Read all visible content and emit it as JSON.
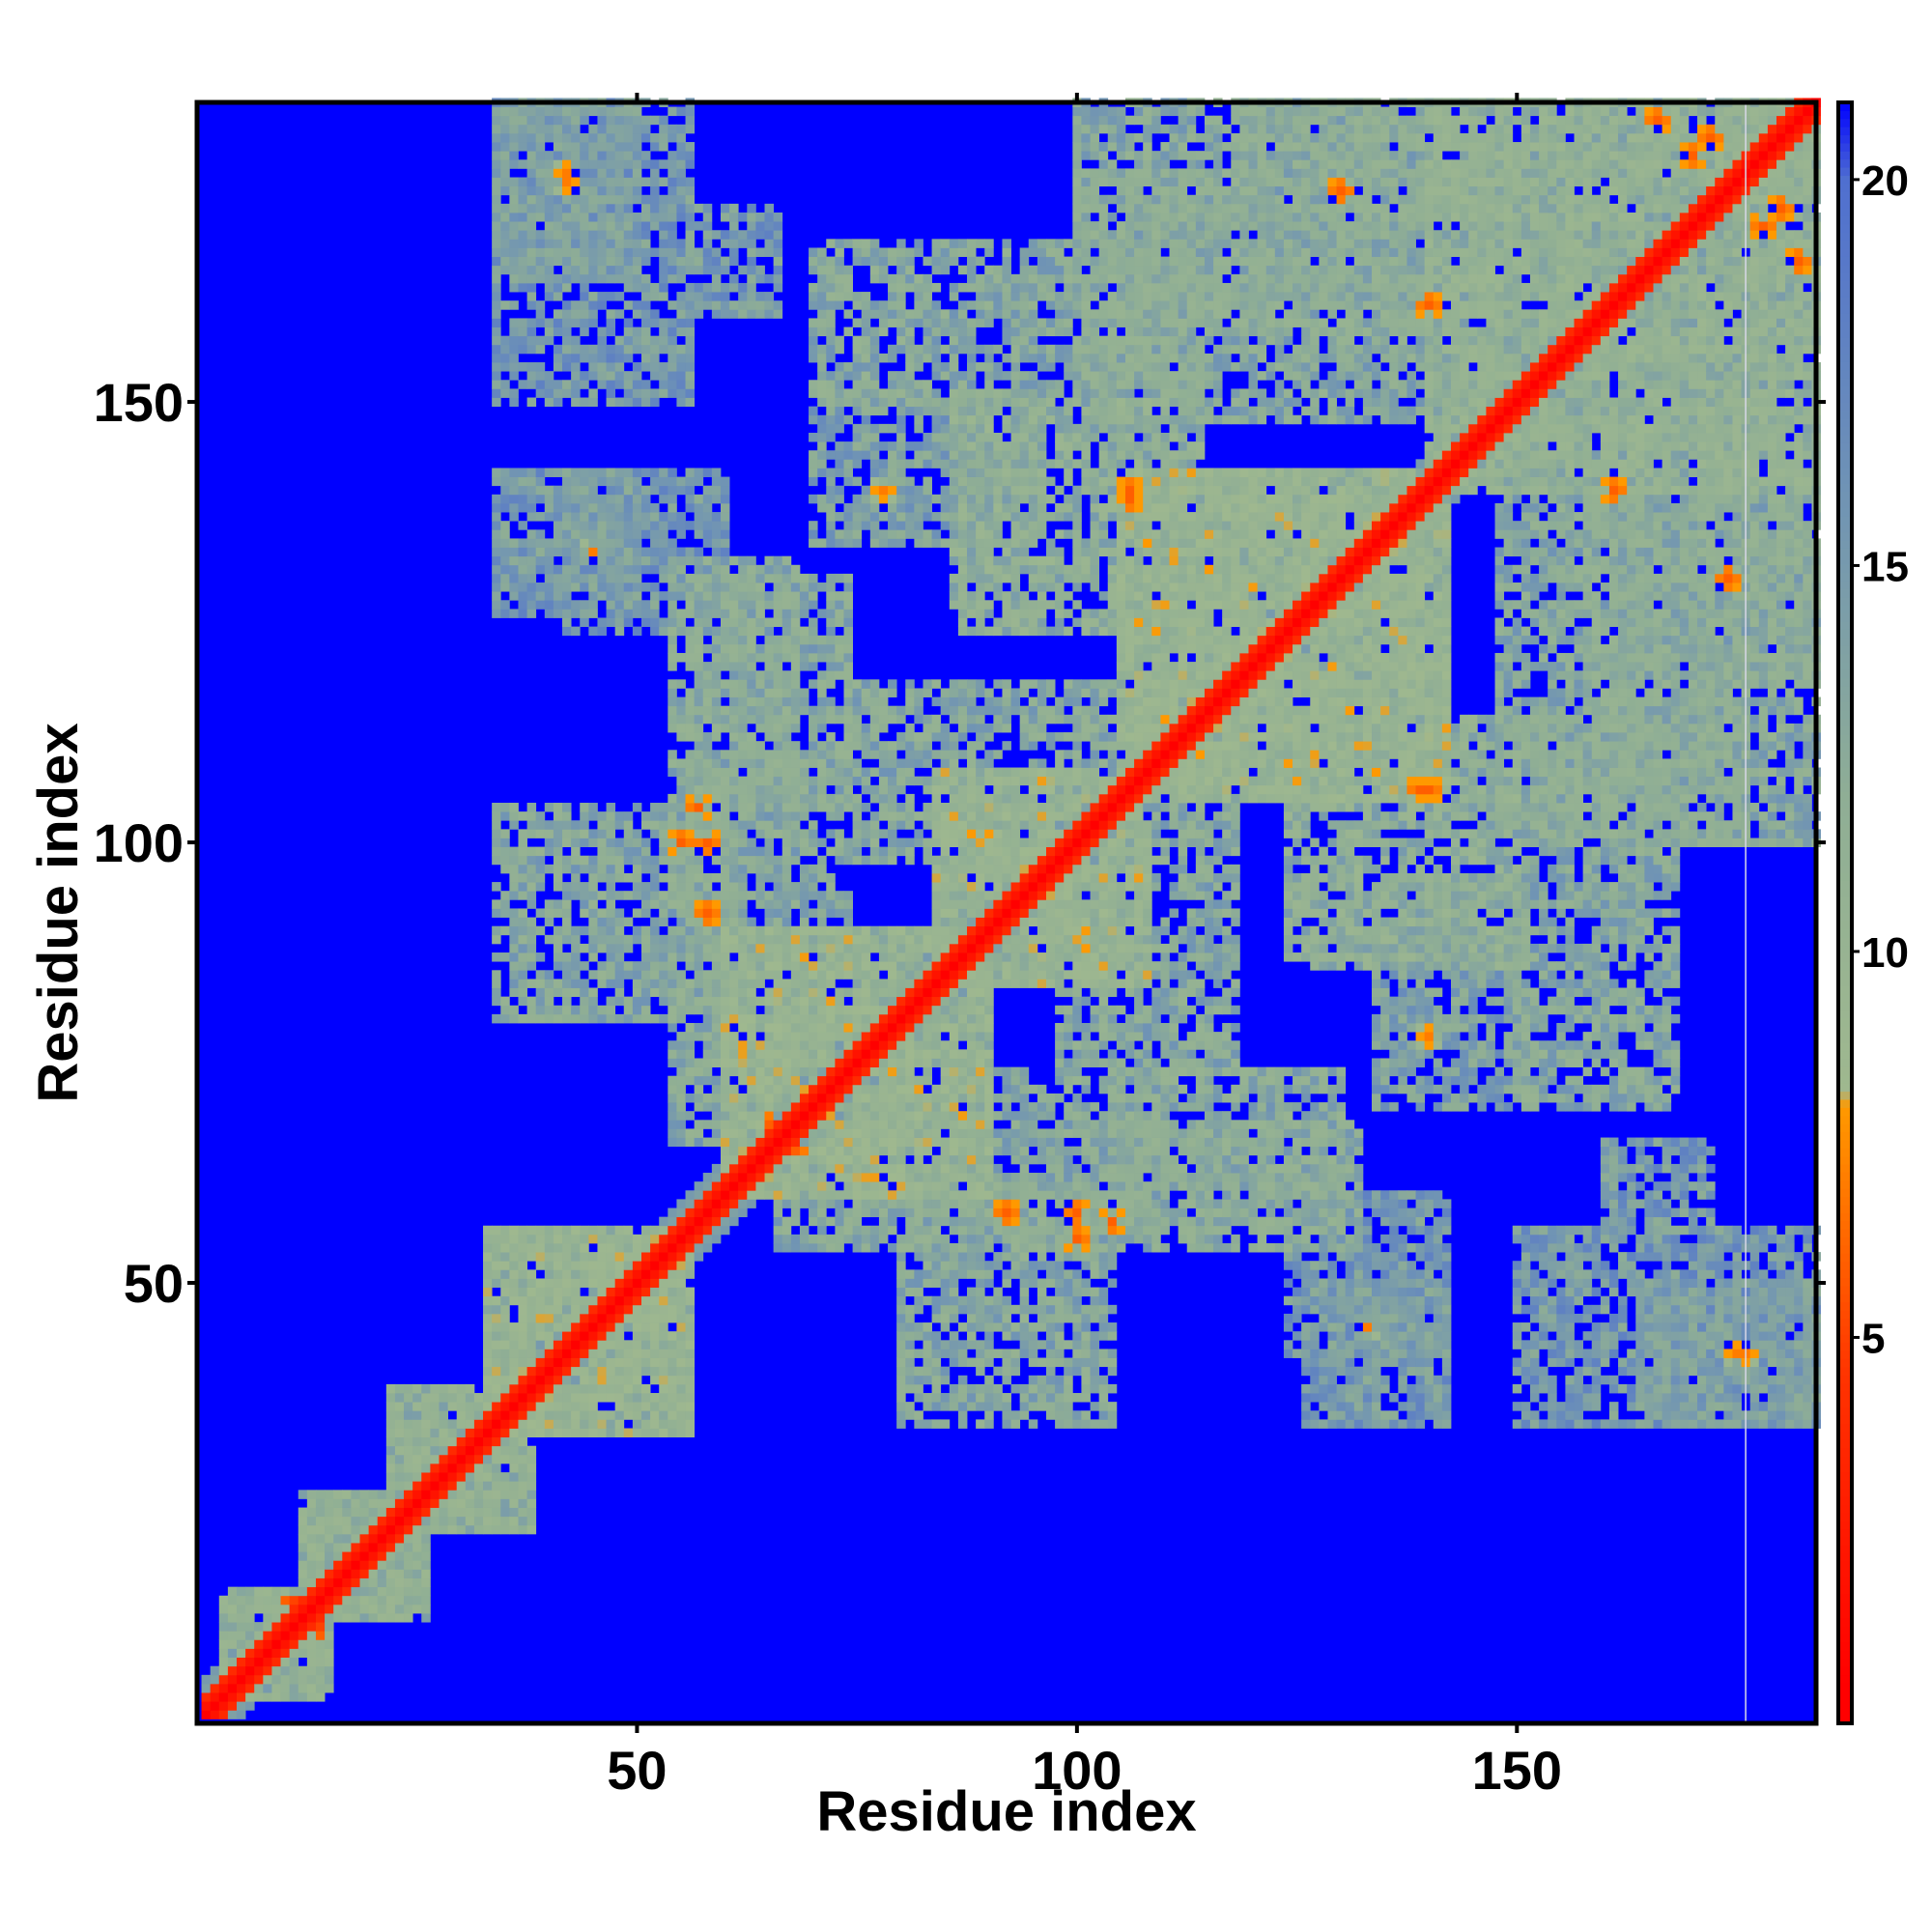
{
  "chart_data": {
    "type": "heatmap",
    "title": "",
    "xlabel": "Residue index",
    "ylabel": "Residue index",
    "xlim": [
      1,
      184
    ],
    "ylim": [
      1,
      184
    ],
    "x_ticks": [
      50,
      100,
      150
    ],
    "y_ticks": [
      50,
      100,
      150
    ],
    "n_residues": 184,
    "value_range": [
      0,
      21
    ],
    "colorbar": {
      "ticks": [
        5,
        10,
        15,
        20
      ],
      "stops": [
        {
          "value": 0.5,
          "color": "#ff0000"
        },
        {
          "value": 4.5,
          "color": "#ff3300"
        },
        {
          "value": 8.0,
          "color": "#ff9900"
        },
        {
          "value": 8.2,
          "color": "#9fb88f"
        },
        {
          "value": 12.0,
          "color": "#8fae95"
        },
        {
          "value": 16.0,
          "color": "#6f93b5"
        },
        {
          "value": 20.0,
          "color": "#4f6fd0"
        },
        {
          "value": 21.0,
          "color": "#0000ff"
        }
      ]
    },
    "background_value": 21,
    "diagonal": {
      "core": 0.5,
      "near": 3.8,
      "halo": 11
    },
    "blocks": [
      {
        "x": [
          3,
          15
        ],
        "y": [
          3,
          15
        ],
        "value": 12
      },
      {
        "x": [
          12,
          26
        ],
        "y": [
          12,
          26
        ],
        "value": 12
      },
      {
        "x": [
          22,
          38
        ],
        "y": [
          22,
          38
        ],
        "value": 12
      },
      {
        "x": [
          33,
          56
        ],
        "y": [
          33,
          56
        ],
        "value": 11
      },
      {
        "x": [
          60,
          90
        ],
        "y": [
          60,
          90
        ],
        "value": 11
      },
      {
        "x": [
          84,
          108
        ],
        "y": [
          84,
          108
        ],
        "value": 11
      },
      {
        "x": [
          105,
          142
        ],
        "y": [
          105,
          142
        ],
        "value": 11
      },
      {
        "x": [
          140,
          184
        ],
        "y": [
          140,
          184
        ],
        "value": 12
      },
      {
        "x": [
          34,
          60
        ],
        "y": [
          80,
          104
        ],
        "value": 13
      },
      {
        "x": [
          56,
          74
        ],
        "y": [
          104,
          130
        ],
        "value": 13
      },
      {
        "x": [
          66,
          110
        ],
        "y": [
          54,
          74
        ],
        "value": 13
      },
      {
        "x": [
          98,
          118
        ],
        "y": [
          74,
          108
        ],
        "value": 13
      },
      {
        "x": [
          112,
          132
        ],
        "y": [
          54,
          68
        ],
        "value": 13
      },
      {
        "x": [
          124,
          150
        ],
        "y": [
          86,
          114
        ],
        "value": 12
      },
      {
        "x": [
          150,
          168
        ],
        "y": [
          70,
          114
        ],
        "value": 13
      },
      {
        "x": [
          118,
          140
        ],
        "y": [
          148,
          184
        ],
        "value": 13
      },
      {
        "x": [
          100,
          122
        ],
        "y": [
          148,
          176
        ],
        "value": 13
      },
      {
        "x": [
          70,
          96
        ],
        "y": [
          134,
          150
        ],
        "value": 14
      },
      {
        "x": [
          56,
          66
        ],
        "y": [
          160,
          172
        ],
        "value": 15
      },
      {
        "x": [
          34,
          50
        ],
        "y": [
          164,
          184
        ],
        "value": 15
      },
      {
        "x": [
          42,
          60
        ],
        "y": [
          124,
          142
        ],
        "value": 15
      },
      {
        "x": [
          158,
          184
        ],
        "y": [
          100,
          142
        ],
        "value": 13
      },
      {
        "x": [
          166,
          184
        ],
        "y": [
          150,
          184
        ],
        "value": 12
      },
      {
        "x": [
          126,
          142
        ],
        "y": [
          34,
          50
        ],
        "value": 15
      },
      {
        "x": [
          150,
          184
        ],
        "y": [
          34,
          56
        ],
        "value": 15
      }
    ],
    "hotspots": [
      {
        "x": 11,
        "y": 13,
        "value": 4
      },
      {
        "x": 24,
        "y": 24,
        "value": 5
      },
      {
        "x": 42,
        "y": 42,
        "value": 5
      },
      {
        "x": 46,
        "y": 46,
        "value": 5
      },
      {
        "x": 54,
        "y": 54,
        "value": 6
      },
      {
        "x": 55,
        "y": 100,
        "value": 6
      },
      {
        "x": 57,
        "y": 104,
        "value": 6
      },
      {
        "x": 66,
        "y": 68,
        "value": 5
      },
      {
        "x": 76,
        "y": 76,
        "value": 5
      },
      {
        "x": 84,
        "y": 84,
        "value": 5
      },
      {
        "x": 92,
        "y": 58,
        "value": 6
      },
      {
        "x": 100,
        "y": 58,
        "value": 6
      },
      {
        "x": 106,
        "y": 140,
        "value": 6
      },
      {
        "x": 124,
        "y": 124,
        "value": 5
      },
      {
        "x": 130,
        "y": 174,
        "value": 6
      },
      {
        "x": 139,
        "y": 106,
        "value": 6
      },
      {
        "x": 161,
        "y": 140,
        "value": 6
      },
      {
        "x": 166,
        "y": 182,
        "value": 6
      },
      {
        "x": 172,
        "y": 180,
        "value": 6
      },
      {
        "x": 178,
        "y": 170,
        "value": 6
      },
      {
        "x": 42,
        "y": 176,
        "value": 7
      },
      {
        "x": 140,
        "y": 78,
        "value": 7
      },
      {
        "x": 133,
        "y": 45,
        "value": 7
      },
      {
        "x": 175,
        "y": 42,
        "value": 7
      }
    ],
    "blank_column": 176
  }
}
